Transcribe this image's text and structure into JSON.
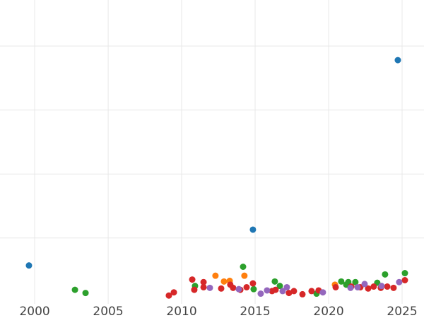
{
  "chart_data": {
    "type": "scatter",
    "xlim": [
      1997.64,
      2026.49
    ],
    "xticks": [
      2000,
      2005,
      2010,
      2015,
      2020,
      2025
    ],
    "ylim": [
      -0.03,
      4.72
    ],
    "ygrid": [
      1,
      2,
      3,
      4
    ],
    "grid": true,
    "series": [
      {
        "color": "#1f77b4",
        "x": [
          1999.61,
          2014.85,
          2024.71
        ],
        "values": [
          0.57,
          1.13,
          3.78
        ]
      },
      {
        "color": "#ff7f0e",
        "x": [
          2012.3,
          2012.88,
          2013.27,
          2014.27,
          2020.43
        ],
        "values": [
          0.41,
          0.32,
          0.33,
          0.41,
          0.27
        ]
      },
      {
        "color": "#2ca02c",
        "x": [
          2002.74,
          2003.46,
          2010.91,
          2014.18,
          2014.9,
          2016.34,
          2016.68,
          2019.18,
          2020.86,
          2021.34,
          2021.82,
          2021.2,
          2023.31,
          2023.84,
          2025.19
        ],
        "values": [
          0.19,
          0.14,
          0.25,
          0.55,
          0.2,
          0.32,
          0.25,
          0.13,
          0.32,
          0.31,
          0.31,
          0.27,
          0.3,
          0.43,
          0.45
        ]
      },
      {
        "color": "#d62728",
        "x": [
          2009.13,
          2009.47,
          2010.72,
          2010.86,
          2011.49,
          2011.49,
          2012.69,
          2013.31,
          2013.5,
          2013.99,
          2014.42,
          2014.85,
          2016.15,
          2016.39,
          2017.3,
          2017.64,
          2018.22,
          2018.84,
          2019.32,
          2020.48,
          2021.54,
          2022.16,
          2022.69,
          2023.07,
          2023.55,
          2023.99,
          2024.42,
          2025.19
        ],
        "values": [
          0.1,
          0.15,
          0.35,
          0.19,
          0.31,
          0.23,
          0.21,
          0.27,
          0.22,
          0.19,
          0.23,
          0.29,
          0.17,
          0.19,
          0.14,
          0.17,
          0.12,
          0.17,
          0.18,
          0.23,
          0.24,
          0.23,
          0.21,
          0.24,
          0.22,
          0.24,
          0.22,
          0.34
        ]
      },
      {
        "color": "#9467bd",
        "x": [
          2011.92,
          2013.89,
          2015.38,
          2015.81,
          2016.87,
          2017.16,
          2019.61,
          2021.49,
          2021.97,
          2022.45,
          2023.6,
          2024.8
        ],
        "values": [
          0.22,
          0.2,
          0.13,
          0.18,
          0.17,
          0.23,
          0.15,
          0.22,
          0.23,
          0.28,
          0.25,
          0.31
        ]
      }
    ]
  }
}
